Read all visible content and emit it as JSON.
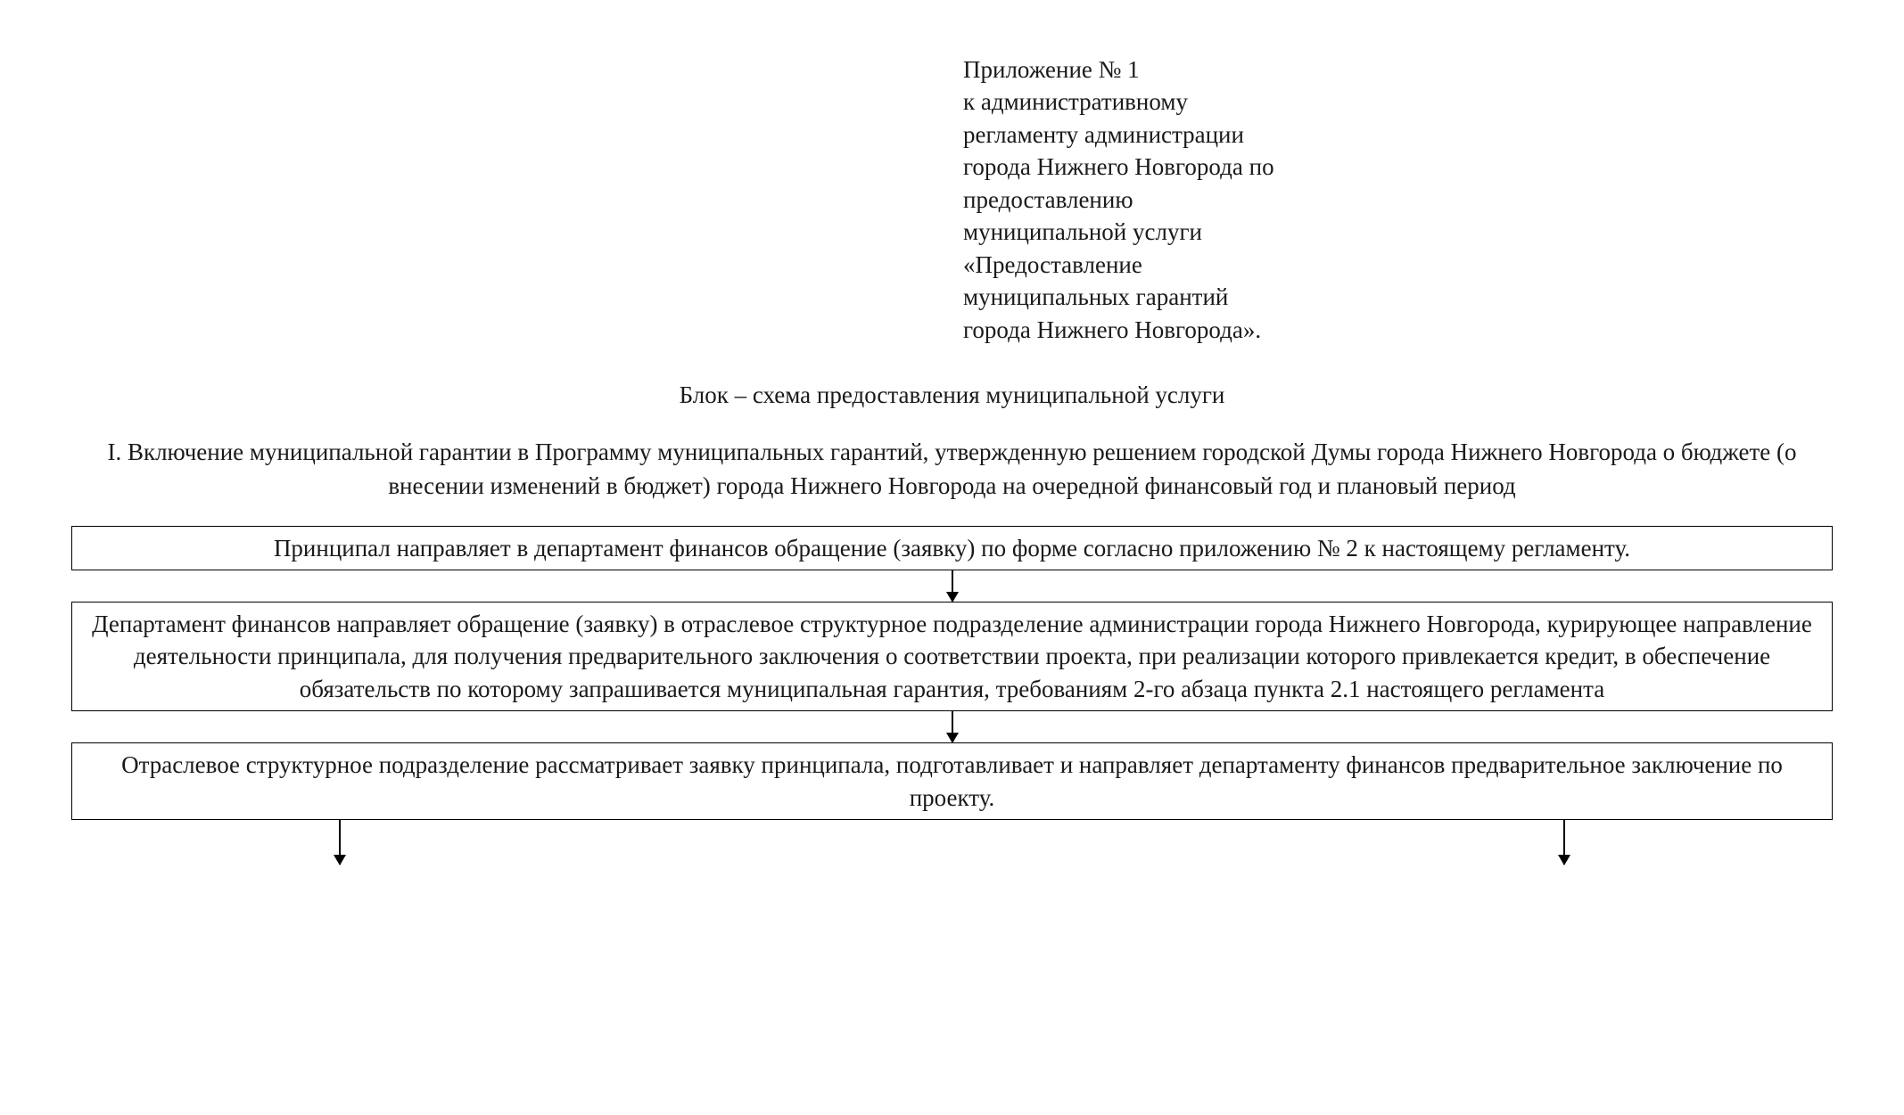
{
  "header": {
    "lines": [
      "Приложение № 1",
      "к административному",
      "регламенту администрации",
      "города Нижнего Новгорода по",
      "предоставлению",
      "муниципальной услуги",
      "«Предоставление",
      "муниципальных гарантий",
      "города Нижнего Новгорода»."
    ]
  },
  "title": "Блок – схема предоставления муниципальной услуги",
  "section_title": "I. Включение муниципальной гарантии в Программу муниципальных гарантий, утвержденную решением городской Думы города Нижнего  Новгорода о бюджете (о внесении изменений в бюджет) города Нижнего Новгорода на очередной финансовый год и плановый период",
  "flowchart": {
    "type": "flowchart",
    "background_color": "#ffffff",
    "border_color": "#000000",
    "text_color": "#1a1a1a",
    "font_size": 27,
    "border_width": 1.5,
    "nodes": [
      {
        "id": "box1",
        "text": "Принципал направляет в департамент финансов обращение (заявку) по форме согласно приложению № 2 к настоящему регламенту."
      },
      {
        "id": "box2",
        "text": "Департамент финансов направляет обращение (заявку) в отраслевое структурное подразделение администрации города Нижнего Новгорода, курирующее направление деятельности принципала, для получения предварительного заключения о соответствии проекта, при реализации которого привлекается кредит, в обеспечение обязательств по которому запрашивается муниципальная гарантия, требованиям 2-го абзаца пункта 2.1 настоящего регламента"
      },
      {
        "id": "box3",
        "text": "Отраслевое структурное подразделение рассматривает заявку принципала, подготавливает и направляет департаменту финансов предварительное заключение по проекту."
      }
    ],
    "edges": [
      {
        "from": "box1",
        "to": "box2",
        "style": "arrow-down"
      },
      {
        "from": "box2",
        "to": "box3",
        "style": "arrow-down"
      },
      {
        "from": "box3",
        "to": "split-left",
        "style": "arrow-down"
      },
      {
        "from": "box3",
        "to": "split-right",
        "style": "arrow-down"
      }
    ],
    "arrow_color": "#000000",
    "arrow_head_size": 12
  }
}
